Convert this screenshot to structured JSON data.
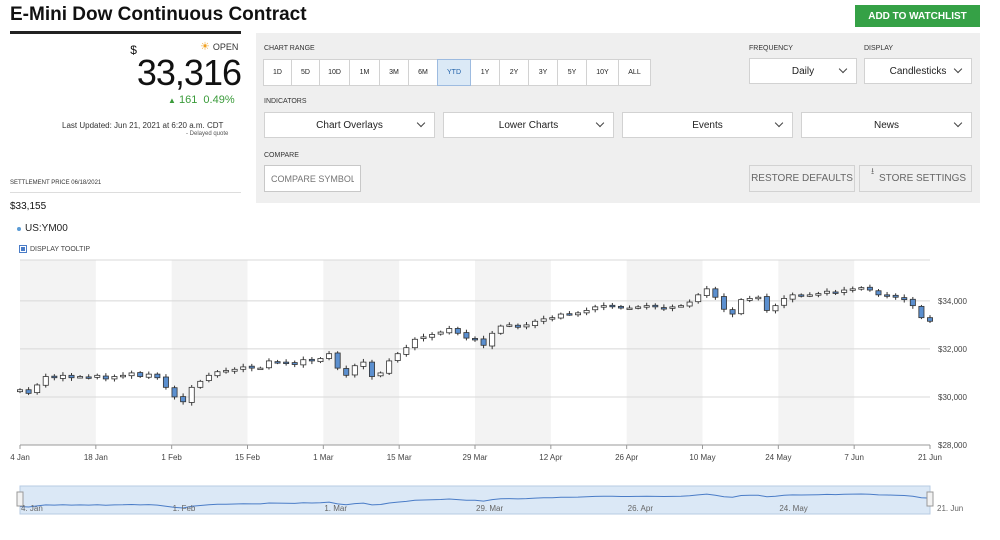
{
  "header": {
    "title": "E-Mini Dow Continuous Contract",
    "watchlist_label": "ADD TO WATCHLIST"
  },
  "quote": {
    "status": "OPEN",
    "currency": "$",
    "price": "33,316",
    "change": "161",
    "change_pct": "0.49%",
    "last_updated": "Last Updated: Jun 21, 2021 at 6:20 a.m. CDT",
    "delayed": "- Delayed quote",
    "settlement_label": "SETTLEMENT PRICE 06/18/2021",
    "settlement_value": "$33,155",
    "symbol": "US:YM00",
    "tooltip_label": "DISPLAY TOOLTIP"
  },
  "controls": {
    "chart_range_label": "CHART RANGE",
    "ranges": [
      "1D",
      "5D",
      "10D",
      "1M",
      "3M",
      "6M",
      "YTD",
      "1Y",
      "2Y",
      "3Y",
      "5Y",
      "10Y",
      "ALL"
    ],
    "active_range": "YTD",
    "frequency_label": "FREQUENCY",
    "frequency_value": "Daily",
    "display_label": "DISPLAY",
    "display_value": "Candlesticks",
    "indicators_label": "INDICATORS",
    "indicators": [
      "Chart Overlays",
      "Lower Charts",
      "Events",
      "News"
    ],
    "compare_label": "COMPARE",
    "compare_placeholder": "COMPARE SYMBOL",
    "restore_label": "RESTORE DEFAULTS",
    "store_label": "STORE SETTINGS"
  },
  "colors": {
    "up": "#ffffff",
    "down": "#5b8fcf",
    "accent": "#35a146",
    "positive": "#3a9b3a"
  },
  "chart_data": {
    "type": "candlestick",
    "x_tick_labels": [
      "4 Jan",
      "18 Jan",
      "1 Feb",
      "15 Feb",
      "1 Mar",
      "15 Mar",
      "29 Mar",
      "12 Apr",
      "26 Apr",
      "10 May",
      "24 May",
      "7 Jun",
      "21 Jun"
    ],
    "y_tick_labels": [
      "$34,000",
      "$32,000",
      "$30,000",
      "$28,000"
    ],
    "ylim": [
      28000,
      35700
    ],
    "grid": true,
    "navigator_labels": [
      "4. Jan",
      "1. Feb",
      "1. Mar",
      "29. Mar",
      "26. Apr",
      "24. May",
      "21. Jun"
    ],
    "close": [
      30300,
      30150,
      30500,
      30850,
      30800,
      30900,
      30800,
      30850,
      30800,
      30900,
      30750,
      30850,
      30900,
      31000,
      30850,
      30950,
      30800,
      30400,
      30000,
      29800,
      30400,
      30650,
      30900,
      31050,
      31100,
      31150,
      31250,
      31200,
      31200,
      31500,
      31450,
      31400,
      31350,
      31550,
      31500,
      31600,
      31800,
      31200,
      30900,
      31300,
      31450,
      30850,
      31000,
      31500,
      31800,
      32050,
      32400,
      32500,
      32600,
      32700,
      32850,
      32650,
      32450,
      32400,
      32150,
      32650,
      32950,
      33000,
      32900,
      33000,
      33150,
      33250,
      33300,
      33450,
      33450,
      33500,
      33600,
      33750,
      33800,
      33800,
      33700,
      33700,
      33750,
      33800,
      33750,
      33700,
      33750,
      33800,
      33950,
      34250,
      34500,
      34150,
      33650,
      33450,
      34050,
      34100,
      34150,
      33600,
      33800,
      34100,
      34250,
      34200,
      34250,
      34300,
      34400,
      34350,
      34450,
      34500,
      34550,
      34450,
      34250,
      34200,
      34150,
      34050,
      33800,
      33300,
      33150
    ]
  }
}
